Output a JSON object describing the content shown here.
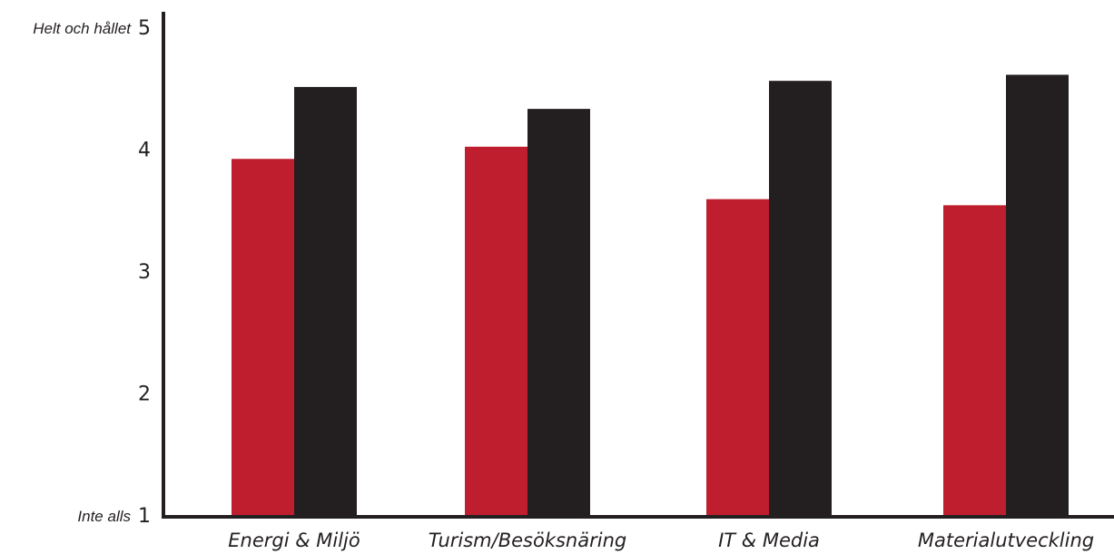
{
  "chart_data": {
    "type": "bar",
    "title": "",
    "xlabel": "",
    "ylabel": "",
    "categories": [
      "Energi & Miljö",
      "Turism/Besöksnäring",
      "IT & Media",
      "Materialutveckling"
    ],
    "series": [
      {
        "color": "#be1e2d",
        "values": [
          3.92,
          4.02,
          3.59,
          3.54
        ]
      },
      {
        "color": "#231f20",
        "values": [
          4.51,
          4.33,
          4.56,
          4.61
        ]
      }
    ],
    "ylim": [
      1,
      5
    ],
    "yticks": [
      {
        "value": 5,
        "number": "5",
        "word": "Helt och hållet"
      },
      {
        "value": 4,
        "number": "4",
        "word": ""
      },
      {
        "value": 3,
        "number": "3",
        "word": ""
      },
      {
        "value": 2,
        "number": "2",
        "word": ""
      },
      {
        "value": 1,
        "number": "1",
        "word": "Inte alls"
      }
    ],
    "grid": false,
    "legend": "none",
    "axis_color": "#231f20"
  }
}
